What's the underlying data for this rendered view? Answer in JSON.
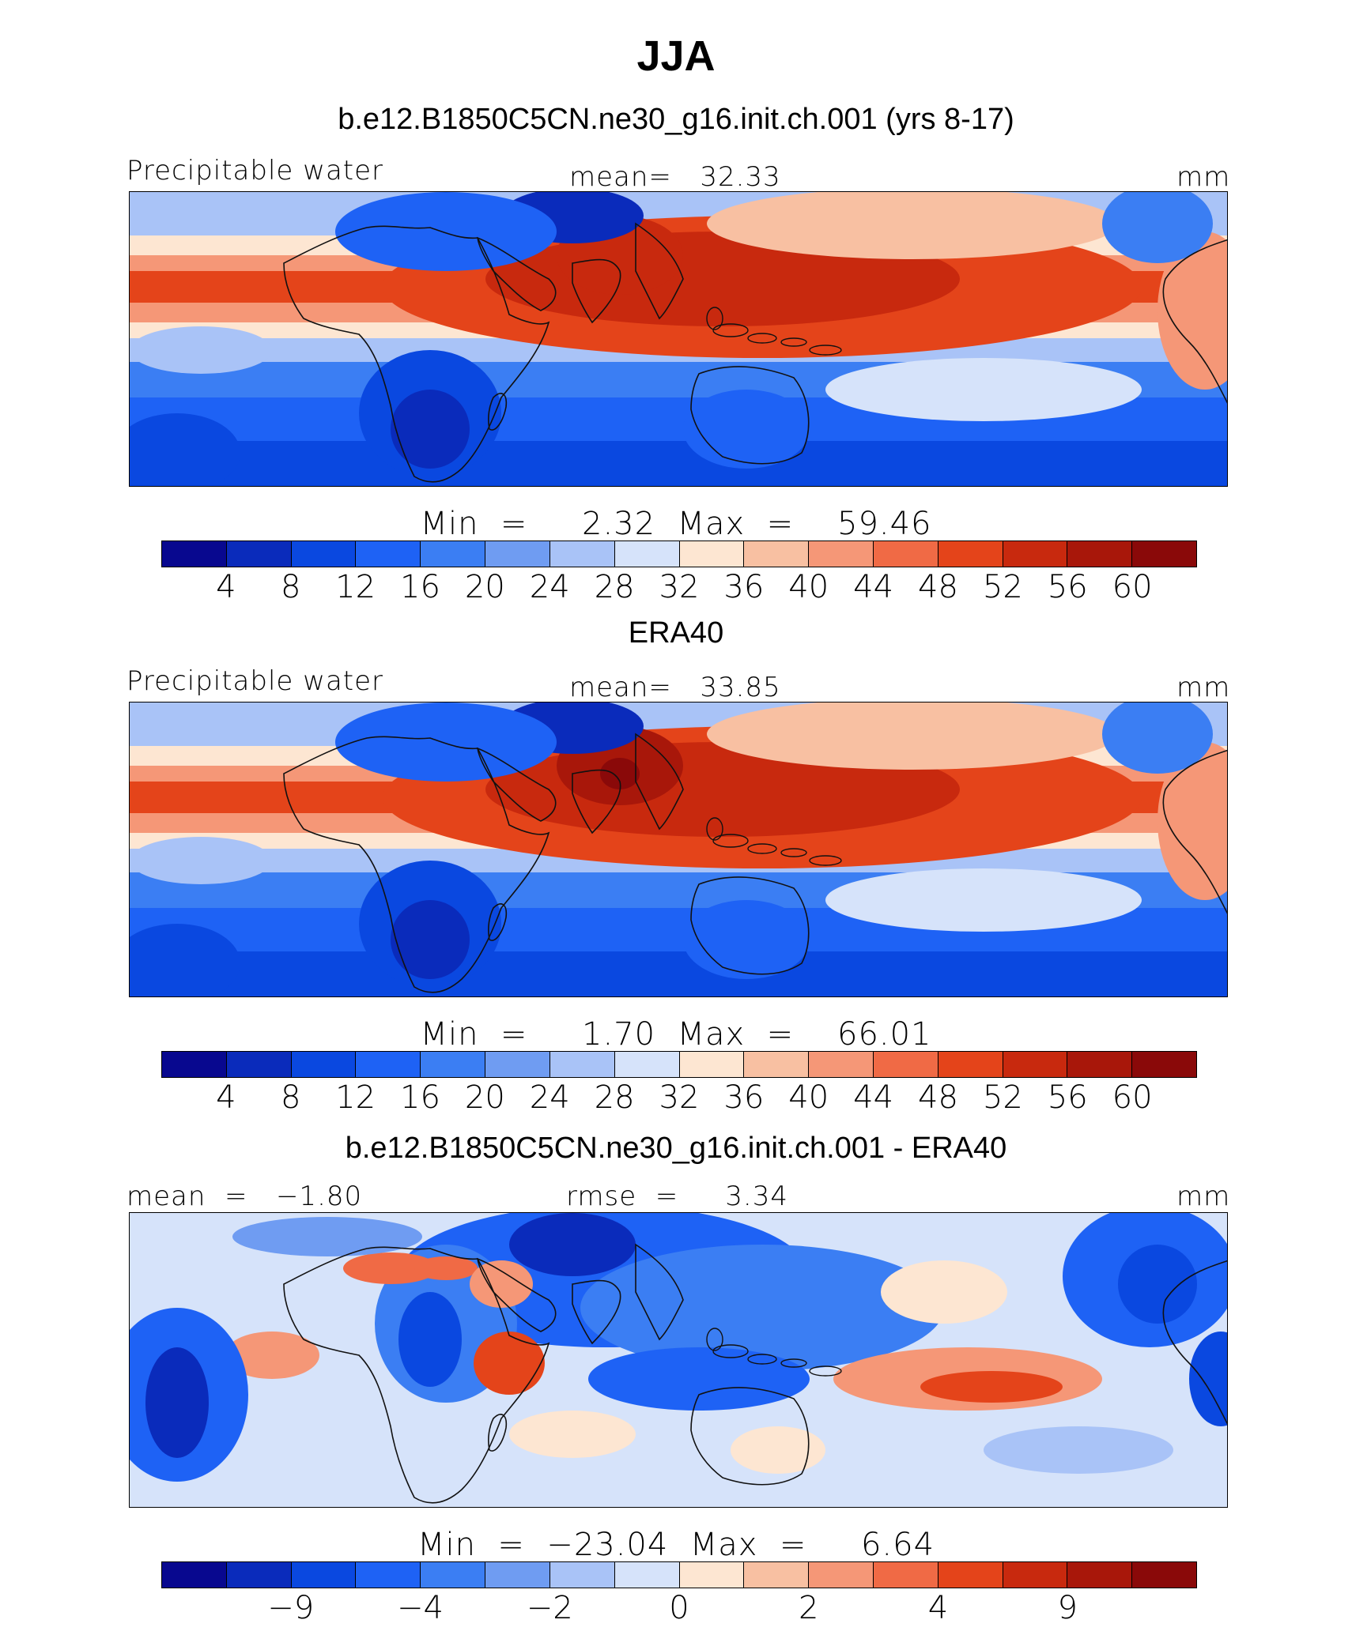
{
  "title": "JJA",
  "colors": [
    "#08088f",
    "#0a2bbb",
    "#0a48e0",
    "#1e62f5",
    "#3b7ef3",
    "#6f9cf2",
    "#a9c3f7",
    "#d6e3fa",
    "#fde6d2",
    "#f8c0a2",
    "#f59777",
    "#f06a45",
    "#e4441a",
    "#c8290e",
    "#a8170a",
    "#8a0909"
  ],
  "panels": [
    {
      "subtitle": "b.e12.B1850C5CN.ne30_g16.init.ch.001 (yrs 8-17)",
      "left_label": "Precipitable water",
      "center_label": "mean=   32.33",
      "right_label": "mm",
      "minmax": "Min  =     2.32  Max  =    59.46",
      "ticks": [
        "4",
        "8",
        "12",
        "16",
        "20",
        "24",
        "28",
        "32",
        "36",
        "40",
        "44",
        "48",
        "52",
        "56",
        "60"
      ]
    },
    {
      "subtitle": "ERA40",
      "left_label": "Precipitable water",
      "center_label": "mean=   33.85",
      "right_label": "mm",
      "minmax": "Min  =     1.70  Max  =    66.01",
      "ticks": [
        "4",
        "8",
        "12",
        "16",
        "20",
        "24",
        "28",
        "32",
        "36",
        "40",
        "44",
        "48",
        "52",
        "56",
        "60"
      ]
    },
    {
      "subtitle": "b.e12.B1850C5CN.ne30_g16.init.ch.001 - ERA40",
      "left_label": "mean  =   −1.80",
      "center_label": "rmse  =     3.34",
      "right_label": "mm",
      "minmax": "Min  =  −23.04  Max  =     6.64",
      "ticks": [
        "−9",
        "−4",
        "−2",
        "0",
        "2",
        "4",
        "9"
      ]
    }
  ]
}
